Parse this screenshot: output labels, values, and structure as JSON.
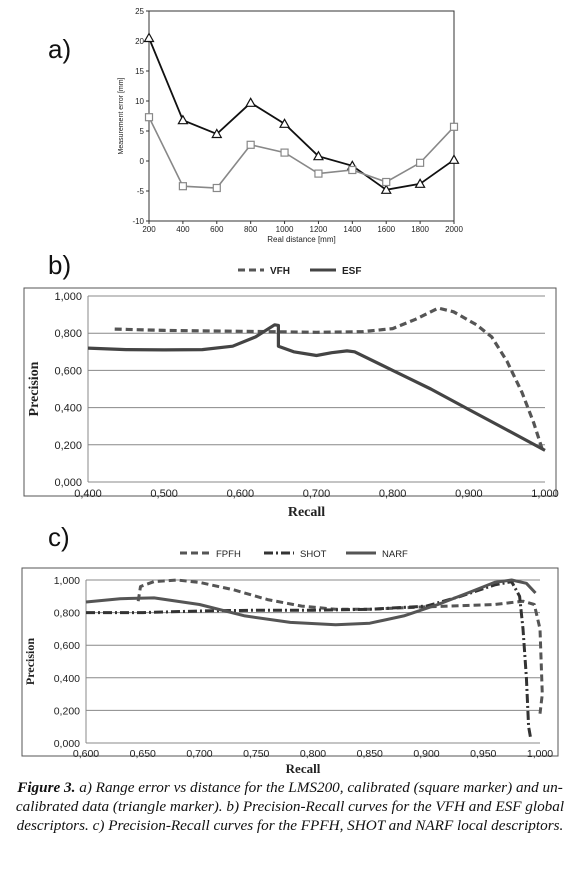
{
  "panels": {
    "a": "a)",
    "b": "b)",
    "c": "c)"
  },
  "caption": {
    "figure_label": "Figure 3.",
    "text": " a) Range error vs distance for the LMS200, calibrated (square marker) and un-calibrated data (triangle marker). b) Precision-Recall curves for the VFH and ESF global descriptors. c) Precision-Recall curves for the FPFH, SHOT and NARF local descriptors."
  },
  "chart_data": [
    {
      "type": "line",
      "title": "",
      "xlabel": "Real distance [mm]",
      "ylabel": "Measurement error [mm]",
      "xlim": [
        200,
        2000
      ],
      "ylim": [
        -10,
        25
      ],
      "grid": false,
      "x_ticks": [
        "200",
        "400",
        "600",
        "800",
        "1000",
        "1200",
        "1400",
        "1600",
        "1800",
        "2000"
      ],
      "y_ticks": [
        "25",
        "20",
        "15",
        "10",
        "5",
        "0",
        "-5",
        "-10"
      ],
      "x": [
        200,
        400,
        600,
        800,
        1000,
        1200,
        1400,
        1600,
        1800,
        2000
      ],
      "series": [
        {
          "marker": "triangle",
          "color": "#111111",
          "values": [
            20.5,
            6.8,
            4.5,
            9.7,
            6.2,
            0.8,
            -0.8,
            -4.8,
            -3.8,
            0.2
          ]
        },
        {
          "marker": "square",
          "color": "#888888",
          "values": [
            7.3,
            -4.2,
            -4.5,
            2.7,
            1.4,
            -2.1,
            -1.5,
            -3.5,
            -0.3,
            5.7
          ]
        }
      ]
    },
    {
      "type": "line",
      "title": "",
      "xlabel": "Recall",
      "ylabel": "Precision",
      "xlim": [
        0.4,
        1.0
      ],
      "ylim": [
        0.0,
        1.0
      ],
      "grid": true,
      "legend": "top",
      "x_ticks": [
        "0,400",
        "0,500",
        "0,600",
        "0,700",
        "0,800",
        "0,900",
        "1,000"
      ],
      "y_ticks": [
        "1,000",
        "0,800",
        "0,600",
        "0,400",
        "0,200",
        "0,000"
      ],
      "series": [
        {
          "name": "VFH",
          "style": "dashed",
          "color": "#555555",
          "points": [
            [
              0.435,
              0.822
            ],
            [
              0.5,
              0.815
            ],
            [
              0.6,
              0.81
            ],
            [
              0.7,
              0.805
            ],
            [
              0.76,
              0.808
            ],
            [
              0.8,
              0.825
            ],
            [
              0.83,
              0.875
            ],
            [
              0.86,
              0.935
            ],
            [
              0.88,
              0.915
            ],
            [
              0.91,
              0.845
            ],
            [
              0.93,
              0.78
            ],
            [
              0.95,
              0.65
            ],
            [
              0.97,
              0.48
            ],
            [
              0.985,
              0.32
            ],
            [
              0.996,
              0.18
            ]
          ]
        },
        {
          "name": "ESF",
          "style": "solid",
          "color": "#444444",
          "points": [
            [
              0.4,
              0.72
            ],
            [
              0.45,
              0.712
            ],
            [
              0.5,
              0.71
            ],
            [
              0.55,
              0.712
            ],
            [
              0.59,
              0.73
            ],
            [
              0.62,
              0.78
            ],
            [
              0.645,
              0.845
            ],
            [
              0.65,
              0.842
            ],
            [
              0.65,
              0.73
            ],
            [
              0.67,
              0.7
            ],
            [
              0.7,
              0.68
            ],
            [
              0.72,
              0.695
            ],
            [
              0.74,
              0.705
            ],
            [
              0.75,
              0.7
            ],
            [
              0.8,
              0.6
            ],
            [
              0.85,
              0.5
            ],
            [
              0.9,
              0.39
            ],
            [
              0.95,
              0.28
            ],
            [
              1.0,
              0.17
            ]
          ]
        }
      ]
    },
    {
      "type": "line",
      "title": "",
      "xlabel": "Recall",
      "ylabel": "Precision",
      "xlim": [
        0.6,
        1.0
      ],
      "ylim": [
        0.0,
        1.0
      ],
      "grid": true,
      "legend": "top",
      "x_ticks": [
        "0,600",
        "0,650",
        "0,700",
        "0,750",
        "0,800",
        "0,850",
        "0,900",
        "0,950",
        "1,000"
      ],
      "y_ticks": [
        "1,000",
        "0,800",
        "0,600",
        "0,400",
        "0,200",
        "0,000"
      ],
      "series": [
        {
          "name": "FPFH",
          "style": "dashed",
          "color": "#555555",
          "points": [
            [
              0.646,
              0.87
            ],
            [
              0.648,
              0.96
            ],
            [
              0.66,
              0.99
            ],
            [
              0.68,
              1.0
            ],
            [
              0.7,
              0.985
            ],
            [
              0.73,
              0.94
            ],
            [
              0.76,
              0.88
            ],
            [
              0.79,
              0.84
            ],
            [
              0.82,
              0.82
            ],
            [
              0.85,
              0.82
            ],
            [
              0.88,
              0.83
            ],
            [
              0.92,
              0.84
            ],
            [
              0.96,
              0.85
            ],
            [
              0.985,
              0.87
            ],
            [
              0.995,
              0.85
            ],
            [
              1.0,
              0.7
            ],
            [
              1.002,
              0.3
            ],
            [
              1.0,
              0.18
            ]
          ]
        },
        {
          "name": "SHOT",
          "style": "dashdot",
          "color": "#333333",
          "points": [
            [
              0.6,
              0.8
            ],
            [
              0.65,
              0.8
            ],
            [
              0.7,
              0.81
            ],
            [
              0.75,
              0.815
            ],
            [
              0.8,
              0.815
            ],
            [
              0.85,
              0.82
            ],
            [
              0.9,
              0.84
            ],
            [
              0.93,
              0.9
            ],
            [
              0.96,
              0.97
            ],
            [
              0.975,
              0.99
            ],
            [
              0.982,
              0.9
            ],
            [
              0.985,
              0.7
            ],
            [
              0.988,
              0.4
            ],
            [
              0.99,
              0.1
            ],
            [
              0.992,
              0.02
            ]
          ]
        },
        {
          "name": "NARF",
          "style": "solid",
          "color": "#555555",
          "points": [
            [
              0.6,
              0.865
            ],
            [
              0.63,
              0.885
            ],
            [
              0.66,
              0.89
            ],
            [
              0.7,
              0.85
            ],
            [
              0.74,
              0.78
            ],
            [
              0.78,
              0.74
            ],
            [
              0.82,
              0.725
            ],
            [
              0.85,
              0.735
            ],
            [
              0.88,
              0.78
            ],
            [
              0.91,
              0.85
            ],
            [
              0.94,
              0.93
            ],
            [
              0.96,
              0.985
            ],
            [
              0.975,
              1.0
            ],
            [
              0.988,
              0.98
            ],
            [
              0.996,
              0.92
            ]
          ]
        }
      ]
    }
  ]
}
